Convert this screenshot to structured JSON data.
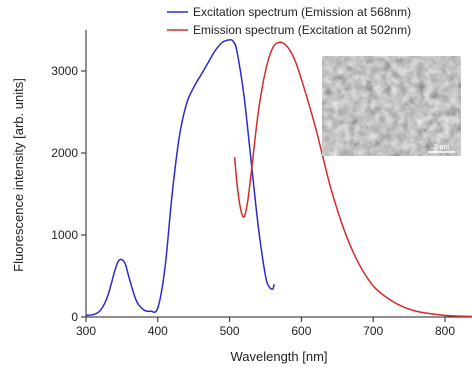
{
  "chart_data": {
    "type": "line",
    "xlabel": "Wavelength [nm]",
    "ylabel": "Fluorescence intensity [arb. units]",
    "xlim": [
      300,
      850
    ],
    "ylim": [
      0,
      3500
    ],
    "xticks": [
      300,
      400,
      500,
      600,
      700,
      800
    ],
    "yticks": [
      0,
      1000,
      2000,
      3000
    ],
    "grid": false,
    "legend_position": "top-right",
    "series": [
      {
        "name": "Excitation spectrum (Emission at 568nm)",
        "color": "#2b2bcc",
        "x": [
          300,
          310,
          320,
          330,
          340,
          345,
          350,
          355,
          360,
          370,
          380,
          390,
          400,
          410,
          420,
          430,
          440,
          450,
          460,
          470,
          480,
          490,
          500,
          505,
          510,
          520,
          530,
          540,
          550,
          555,
          560,
          562
        ],
        "y": [
          20,
          30,
          80,
          250,
          560,
          680,
          700,
          640,
          480,
          200,
          90,
          70,
          110,
          600,
          1500,
          2200,
          2600,
          2800,
          2950,
          3100,
          3250,
          3350,
          3380,
          3360,
          3250,
          2700,
          1900,
          1100,
          500,
          370,
          340,
          400
        ]
      },
      {
        "name": "Emission spectrum (Excitation at 502nm)",
        "color": "#d42a2a",
        "x": [
          507,
          510,
          515,
          520,
          525,
          530,
          540,
          550,
          560,
          570,
          580,
          590,
          600,
          620,
          640,
          660,
          680,
          700,
          720,
          740,
          760,
          780,
          800,
          820,
          850
        ],
        "y": [
          1950,
          1650,
          1330,
          1220,
          1400,
          1750,
          2500,
          3000,
          3280,
          3350,
          3300,
          3150,
          2900,
          2300,
          1600,
          1050,
          650,
          380,
          230,
          130,
          70,
          40,
          20,
          10,
          5
        ]
      }
    ],
    "inset": {
      "type": "micrograph",
      "scale_bar_label": "2 μm"
    }
  }
}
